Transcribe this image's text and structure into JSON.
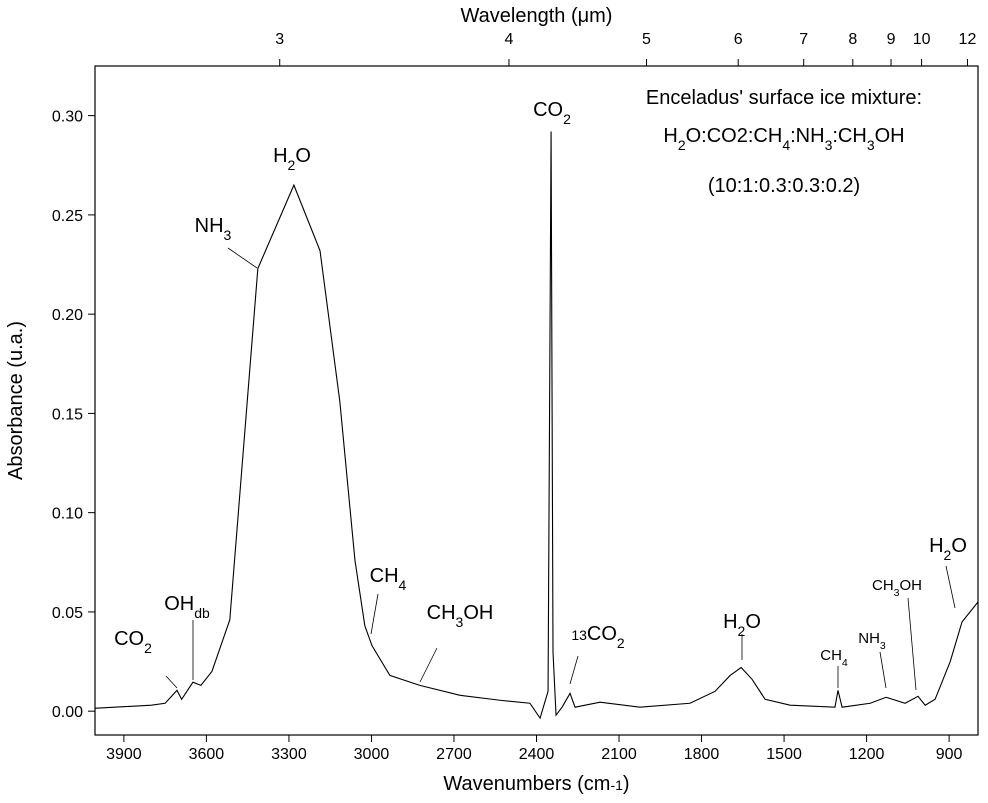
{
  "chart_data": {
    "type": "line",
    "title": [
      [
        "Enceladus' surface ice mixture:",
        ""
      ]
    ],
    "inset_lines": [
      [
        [
          "H",
          ""
        ],
        [
          "2",
          "sub"
        ],
        [
          "O:CO2:CH",
          ""
        ],
        [
          "4",
          "sub"
        ],
        [
          ":NH",
          ""
        ],
        [
          "3",
          "sub"
        ],
        [
          ":CH",
          ""
        ],
        [
          "3",
          "sub"
        ],
        [
          "OH",
          ""
        ]
      ],
      [
        [
          "(10:1:0.3:0.3:0.2)",
          ""
        ]
      ]
    ],
    "xlabel": [
      [
        "Wavenumbers (cm",
        ""
      ],
      [
        "-1",
        "sup"
      ],
      [
        ")",
        ""
      ]
    ],
    "ylabel": [
      [
        "Absorbance (u.a.)",
        ""
      ]
    ],
    "x2label": [
      [
        "Wavelength (",
        ""
      ],
      [
        "μ",
        ""
      ],
      [
        "m)",
        ""
      ]
    ],
    "color": "#000000",
    "x": [
      4005,
      4000,
      3800,
      3750,
      3707,
      3690,
      3649,
      3620,
      3580,
      3515,
      3413,
      3282,
      3187,
      3115,
      3060,
      3024,
      2998,
      2933,
      2824,
      2678,
      2533,
      2424,
      2387,
      2358,
      2347,
      2340,
      2329,
      2307,
      2278,
      2260,
      2169,
      2024,
      1842,
      1751,
      1696,
      1656,
      1616,
      1569,
      1478,
      1315,
      1304,
      1289,
      1187,
      1129,
      1060,
      1013,
      987,
      951,
      896,
      853,
      795
    ],
    "values": [
      0.0015,
      0.0015,
      0.003,
      0.004,
      0.0105,
      0.006,
      0.0146,
      0.013,
      0.02,
      0.046,
      0.223,
      0.265,
      0.232,
      0.156,
      0.076,
      0.043,
      0.033,
      0.018,
      0.013,
      0.008,
      0.0055,
      0.004,
      -0.0035,
      0.01,
      0.292,
      0.03,
      -0.002,
      0.002,
      0.009,
      0.002,
      0.0045,
      0.002,
      0.004,
      0.01,
      0.018,
      0.022,
      0.016,
      0.006,
      0.003,
      0.002,
      0.0105,
      0.002,
      0.004,
      0.007,
      0.004,
      0.0075,
      0.003,
      0.006,
      0.025,
      0.045,
      0.055
    ],
    "xlim": [
      4005,
      795
    ],
    "xticks": [
      3900,
      3600,
      3300,
      3000,
      2700,
      2400,
      2100,
      1800,
      1500,
      1200,
      900
    ],
    "x2lim": [
      2.497,
      12.579
    ],
    "x2ticks": [
      3,
      4,
      5,
      6,
      7,
      8,
      9,
      10,
      12
    ],
    "ylim": [
      -0.012,
      0.325
    ],
    "yticks": [
      {
        "value": 0,
        "label": "0.00"
      },
      {
        "value": 0.05,
        "label": "0.05"
      },
      {
        "value": 0.1,
        "label": "0.10"
      },
      {
        "value": 0.15,
        "label": "0.15"
      },
      {
        "value": 0.2,
        "label": "0.20"
      },
      {
        "value": 0.25,
        "label": "0.25"
      },
      {
        "value": 0.3,
        "label": "0.30"
      }
    ],
    "annotations": [
      {
        "segments": [
          [
            "CO",
            ""
          ],
          [
            "2",
            "sub"
          ]
        ]
      },
      {
        "segments": [
          [
            "OH",
            ""
          ],
          [
            "db",
            "sub"
          ]
        ]
      },
      {
        "segments": [
          [
            "NH",
            ""
          ],
          [
            "3",
            "sub"
          ]
        ]
      },
      {
        "segments": [
          [
            "H",
            ""
          ],
          [
            "2",
            "sub"
          ],
          [
            "O",
            ""
          ]
        ]
      },
      {
        "segments": [
          [
            "CH",
            ""
          ],
          [
            "4",
            "sub"
          ]
        ]
      },
      {
        "segments": [
          [
            "CH",
            ""
          ],
          [
            "3",
            "sub"
          ],
          [
            "OH",
            ""
          ]
        ]
      },
      {
        "segments": [
          [
            "CO",
            ""
          ],
          [
            "2",
            "sub"
          ]
        ]
      },
      {
        "segments": [
          [
            "13",
            "sup"
          ],
          [
            "CO",
            ""
          ],
          [
            "2",
            "sub"
          ]
        ]
      },
      {
        "segments": [
          [
            "H",
            ""
          ],
          [
            "2",
            "sub"
          ],
          [
            "O",
            ""
          ]
        ]
      },
      {
        "segments": [
          [
            "CH",
            ""
          ],
          [
            "4",
            "sub"
          ]
        ]
      },
      {
        "segments": [
          [
            "NH",
            ""
          ],
          [
            "3",
            "sub"
          ]
        ]
      },
      {
        "segments": [
          [
            "CH",
            ""
          ],
          [
            "3",
            "sub"
          ],
          [
            "OH",
            ""
          ]
        ]
      },
      {
        "segments": [
          [
            "H",
            ""
          ],
          [
            "2",
            "sub"
          ],
          [
            "O",
            ""
          ]
        ]
      }
    ]
  }
}
